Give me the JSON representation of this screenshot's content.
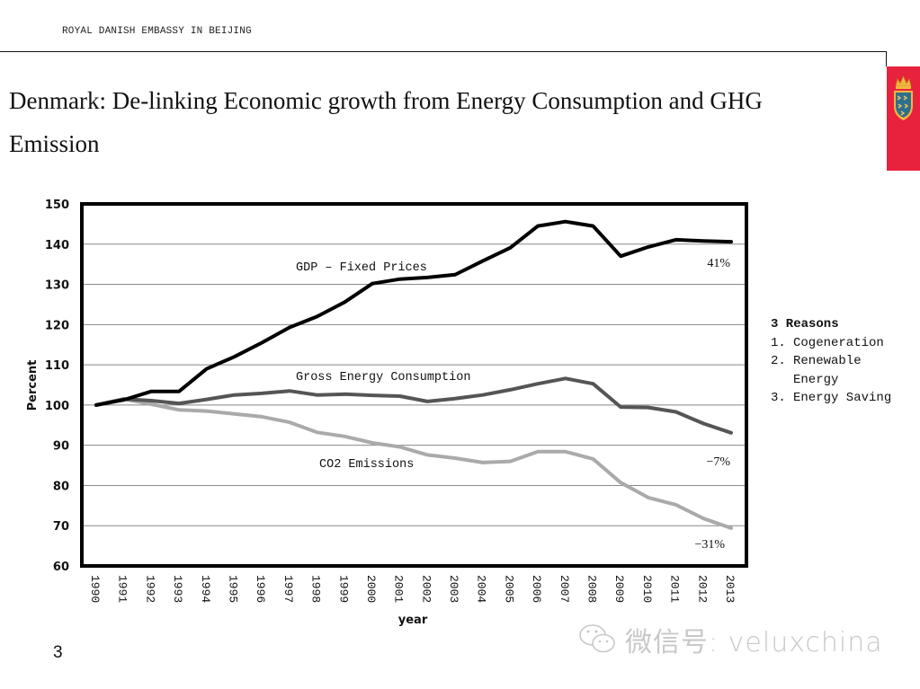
{
  "header": {
    "organization": "ROYAL DANISH EMBASSY IN BEIJING"
  },
  "slide": {
    "title": "Denmark: De-linking Economic growth from Energy Consumption and GHG Emission",
    "page_number": "3",
    "brand_color": "#e8223d",
    "emblem_icon": "danish-royal-coat-of-arms"
  },
  "sidebar_note": {
    "title": "3 Reasons",
    "items": [
      {
        "num": "1.",
        "text": "Cogeneration"
      },
      {
        "num": "2.",
        "text": "Renewable Energy"
      },
      {
        "num": "3.",
        "text": "Energy Saving"
      }
    ]
  },
  "watermark": {
    "icon": "wechat-icon",
    "text": "微信号: veluxchina"
  },
  "chart_data": {
    "type": "line",
    "title": "",
    "xlabel": "year",
    "ylabel": "Percent",
    "ylim": [
      60,
      150
    ],
    "yticks": [
      60,
      70,
      80,
      90,
      100,
      110,
      120,
      130,
      140,
      150
    ],
    "grid": true,
    "x": [
      "1990",
      "1991",
      "1992",
      "1993",
      "1994",
      "1995",
      "1996",
      "1997",
      "1998",
      "1999",
      "2000",
      "2001",
      "2002",
      "2003",
      "2004",
      "2005",
      "2006",
      "2007",
      "2008",
      "2009",
      "2010",
      "2011",
      "2012",
      "2013"
    ],
    "series": [
      {
        "name": "GDP – Fixed Prices",
        "color": "#000000",
        "end_label": "41%",
        "values": [
          100,
          101.3,
          103.4,
          103.4,
          109,
          112,
          115.5,
          119.3,
          122,
          125.6,
          130.2,
          131.3,
          131.7,
          132.4,
          135.8,
          139.1,
          144.5,
          145.6,
          144.5,
          137,
          139.3,
          141.1,
          140.8,
          140.6
        ]
      },
      {
        "name": "Gross Energy Consumption",
        "color": "#555555",
        "end_label": "−7%",
        "values": [
          100,
          101.5,
          101.1,
          100.4,
          101.4,
          102.5,
          102.9,
          103.5,
          102.5,
          102.7,
          102.4,
          102.2,
          100.9,
          101.6,
          102.5,
          103.8,
          105.3,
          106.6,
          105.3,
          99.5,
          99.4,
          98.3,
          95.4,
          93.1
        ]
      },
      {
        "name": "CO2 Emissions",
        "color": "#aaaaaa",
        "end_label": "−31%",
        "values": [
          100,
          101.5,
          100.2,
          98.8,
          98.5,
          97.8,
          97.1,
          95.7,
          93.2,
          92.2,
          90.6,
          89.6,
          87.6,
          86.8,
          85.7,
          86,
          88.4,
          88.4,
          86.6,
          80.7,
          77,
          75.2,
          71.8,
          69.4
        ]
      }
    ]
  }
}
